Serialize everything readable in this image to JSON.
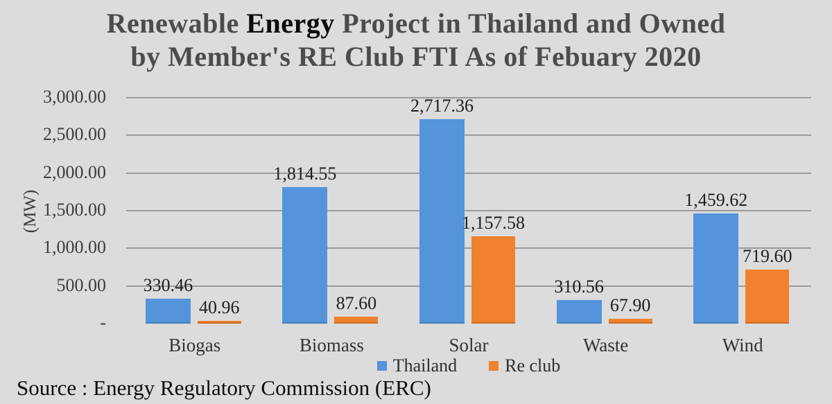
{
  "title": {
    "line1_pre": "Renewable ",
    "line1_bold": "Energy",
    "line1_post": " Project in Thailand and Owned",
    "line2": "by Member's RE Club FTI As of Febuary 2020"
  },
  "source": "Source : Energy Regulatory Commission (ERC)",
  "colors": {
    "background": "#dcdcdc",
    "gridline": "#9b9b9b",
    "thailand": "#5494DA",
    "re_club": "#F0812F",
    "title_gray": "#4c4c4c",
    "title_black": "#0b0b0b",
    "axis_text": "#3c3c3c"
  },
  "chart_data": {
    "type": "bar",
    "title": "Renewable Energy Project in Thailand and Owned by Member's RE Club FTI As of Febuary 2020",
    "categories": [
      "Biogas",
      "Biomass",
      "Solar",
      "Waste",
      "Wind"
    ],
    "series": [
      {
        "name": "Thailand",
        "color": "#5494DA",
        "values": [
          330.46,
          1814.55,
          2717.36,
          310.56,
          1459.62
        ],
        "value_labels": [
          "330.46",
          "1,814.55",
          "2,717.36",
          "310.56",
          "1,459.62"
        ]
      },
      {
        "name": "Re club",
        "color": "#F0812F",
        "values": [
          40.96,
          87.6,
          1157.58,
          67.9,
          719.6
        ],
        "value_labels": [
          "40.96",
          "87.60",
          "1,157.58",
          "67.90",
          "719.60"
        ]
      }
    ],
    "ylabel": "(MW)",
    "ylim": [
      0,
      3000
    ],
    "ytick_values": [
      3000,
      2500,
      2000,
      1500,
      1000,
      500,
      0
    ],
    "ytick_labels": [
      "3,000.00",
      "2,500.00",
      "2,000.00",
      "1,500.00",
      "1,000.00",
      "500.00",
      "-"
    ],
    "grid": true,
    "legend_position": "bottom",
    "legend": [
      "Thailand",
      "Re club"
    ]
  }
}
